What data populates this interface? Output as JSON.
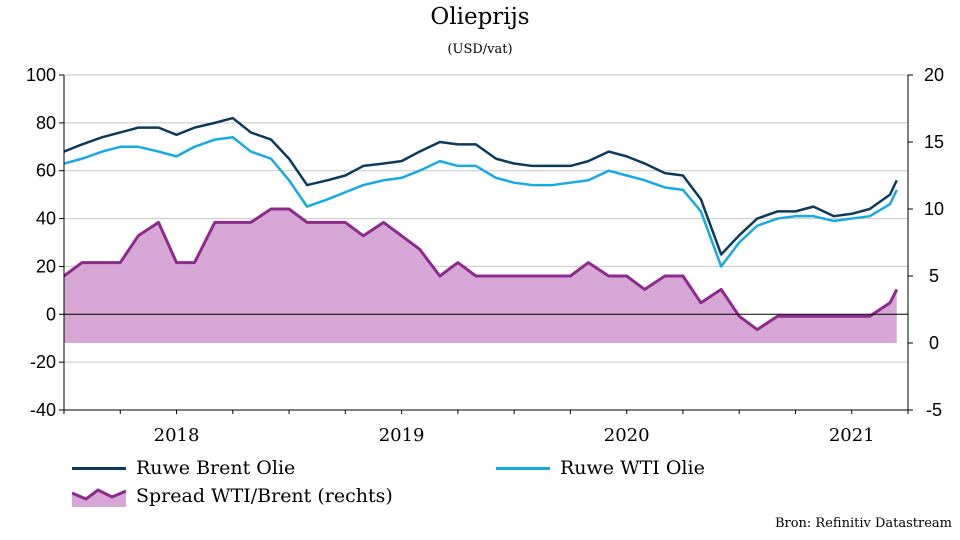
{
  "title": "Olieprijs",
  "subtitle": "(USD/vat)",
  "source": "Bron: Refinitiv Datastream",
  "colors": {
    "brent": "#0b3a5c",
    "wti": "#17a9e1",
    "spread_line": "#8c2b8c",
    "spread_fill": "#d6a7d4"
  },
  "legend": {
    "brent": "Ruwe Brent Olie",
    "wti": "Ruwe WTI Olie",
    "spread": "Spread WTI/Brent (rechts)"
  },
  "chart_data": {
    "type": "line",
    "x_labels": [
      "2018",
      "2019",
      "2020",
      "2021"
    ],
    "x_label_positions": [
      2018.0,
      2019.0,
      2020.0,
      2021.0
    ],
    "xlim": [
      2017.5,
      2021.25
    ],
    "ylim_left": [
      -40,
      100
    ],
    "ylim_right": [
      -5,
      20
    ],
    "yticks_left": [
      -40,
      -20,
      0,
      20,
      40,
      60,
      80,
      100
    ],
    "yticks_right": [
      -5,
      0,
      5,
      10,
      15,
      20
    ],
    "grid": true,
    "legend_position": "bottom",
    "series": [
      {
        "name": "Ruwe Brent Olie",
        "axis": "left",
        "t": [
          2017.5,
          2017.58,
          2017.67,
          2017.75,
          2017.83,
          2017.92,
          2018.0,
          2018.08,
          2018.17,
          2018.25,
          2018.33,
          2018.42,
          2018.5,
          2018.58,
          2018.67,
          2018.75,
          2018.83,
          2018.92,
          2019.0,
          2019.08,
          2019.17,
          2019.25,
          2019.33,
          2019.42,
          2019.5,
          2019.58,
          2019.67,
          2019.75,
          2019.83,
          2019.92,
          2020.0,
          2020.08,
          2020.17,
          2020.25,
          2020.33,
          2020.42,
          2020.5,
          2020.58,
          2020.67,
          2020.75,
          2020.83,
          2020.92,
          2021.0,
          2021.08,
          2021.17,
          2021.2
        ],
        "values": [
          68,
          71,
          74,
          76,
          78,
          78,
          75,
          78,
          80,
          82,
          76,
          73,
          65,
          54,
          56,
          58,
          62,
          63,
          64,
          68,
          72,
          71,
          71,
          65,
          63,
          62,
          62,
          62,
          64,
          68,
          66,
          63,
          59,
          58,
          48,
          25,
          33,
          40,
          43,
          43,
          45,
          41,
          42,
          44,
          50,
          56
        ]
      },
      {
        "name": "Ruwe WTI Olie",
        "axis": "left",
        "t": [
          2017.5,
          2017.58,
          2017.67,
          2017.75,
          2017.83,
          2017.92,
          2018.0,
          2018.08,
          2018.17,
          2018.25,
          2018.33,
          2018.42,
          2018.5,
          2018.58,
          2018.67,
          2018.75,
          2018.83,
          2018.92,
          2019.0,
          2019.08,
          2019.17,
          2019.25,
          2019.33,
          2019.42,
          2019.5,
          2019.58,
          2019.67,
          2019.75,
          2019.83,
          2019.92,
          2020.0,
          2020.08,
          2020.17,
          2020.25,
          2020.33,
          2020.42,
          2020.5,
          2020.58,
          2020.67,
          2020.75,
          2020.83,
          2020.92,
          2021.0,
          2021.08,
          2021.17,
          2021.2
        ],
        "values": [
          63,
          65,
          68,
          70,
          70,
          68,
          66,
          70,
          73,
          74,
          68,
          65,
          56,
          45,
          48,
          51,
          54,
          56,
          57,
          60,
          64,
          62,
          62,
          57,
          55,
          54,
          54,
          55,
          56,
          60,
          58,
          56,
          53,
          52,
          43,
          20,
          30,
          37,
          40,
          41,
          41,
          39,
          40,
          41,
          46,
          52
        ]
      },
      {
        "name": "Spread WTI/Brent (rechts)",
        "axis": "right",
        "t": [
          2017.5,
          2017.58,
          2017.67,
          2017.75,
          2017.83,
          2017.92,
          2018.0,
          2018.08,
          2018.17,
          2018.25,
          2018.33,
          2018.42,
          2018.5,
          2018.58,
          2018.67,
          2018.75,
          2018.83,
          2018.92,
          2019.0,
          2019.08,
          2019.17,
          2019.25,
          2019.33,
          2019.42,
          2019.5,
          2019.58,
          2019.67,
          2019.75,
          2019.83,
          2019.92,
          2020.0,
          2020.08,
          2020.17,
          2020.25,
          2020.33,
          2020.42,
          2020.5,
          2020.58,
          2020.67,
          2020.75,
          2020.83,
          2020.92,
          2021.0,
          2021.08,
          2021.17,
          2021.2
        ],
        "values": [
          5,
          6,
          6,
          6,
          8,
          9,
          6,
          6,
          9,
          9,
          9,
          10,
          10,
          9,
          9,
          9,
          8,
          9,
          8,
          7,
          5,
          6,
          5,
          5,
          5,
          5,
          5,
          5,
          6,
          5,
          5,
          4,
          5,
          5,
          3,
          4,
          2,
          1,
          2,
          2,
          2,
          2,
          2,
          2,
          3,
          4
        ]
      }
    ]
  }
}
